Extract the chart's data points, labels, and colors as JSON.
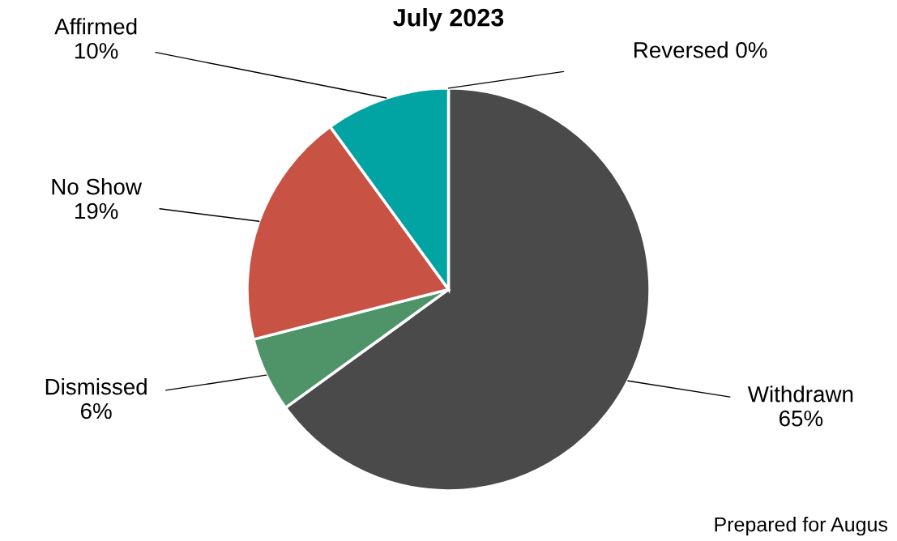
{
  "chart_data": {
    "type": "pie",
    "title": "July 2023",
    "categories": [
      "Withdrawn",
      "Dismissed",
      "No Show",
      "Affirmed",
      "Reversed"
    ],
    "values": [
      65,
      6,
      19,
      10,
      0
    ],
    "colors": [
      "#4a4a4a",
      "#4e9468",
      "#c85244",
      "#02a3a3",
      "#7f7f7f"
    ],
    "data_labels": true,
    "value_labels": [
      "65%",
      "6%",
      "19%",
      "10%",
      "0%"
    ],
    "annotations": [
      "Prepared for Augus"
    ]
  }
}
